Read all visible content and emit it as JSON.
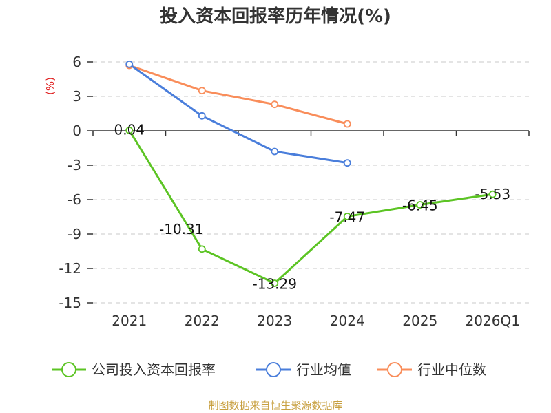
{
  "chart_data": {
    "type": "line",
    "title": "投入资本回报率历年情况(%)",
    "ylabel": "(%)",
    "categories": [
      "2021",
      "2022",
      "2023",
      "2024",
      "2025",
      "2026Q1"
    ],
    "ylim": [
      -15,
      6
    ],
    "yticks": [
      6,
      3,
      0,
      -3,
      -6,
      -9,
      -12,
      -15
    ],
    "grid": true,
    "legend_position": "bottom",
    "series": [
      {
        "name": "公司投入资本回报率",
        "color": "#5cc424",
        "values": [
          0.04,
          -10.31,
          -13.29,
          -7.47,
          -6.45,
          -5.53
        ],
        "labels": [
          "0.04",
          "-10.31",
          "-13.29",
          "-7.47",
          "-6.45",
          "-5.53"
        ]
      },
      {
        "name": "行业均值",
        "color": "#4a7edb",
        "values": [
          5.8,
          1.3,
          -1.8,
          -2.8,
          null,
          null
        ]
      },
      {
        "name": "行业中位数",
        "color": "#f98d5a",
        "values": [
          5.7,
          3.5,
          2.3,
          0.6,
          null,
          null
        ]
      }
    ],
    "source": "制图数据来自恒生聚源数据库"
  }
}
